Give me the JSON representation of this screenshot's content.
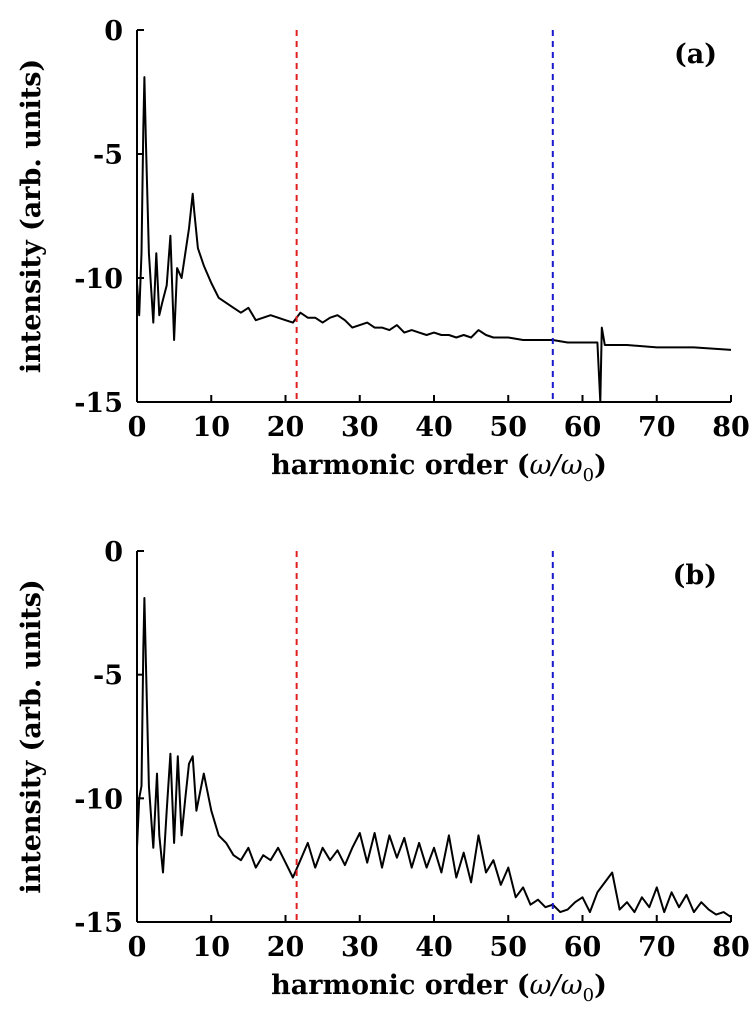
{
  "chart_data": [
    {
      "type": "line",
      "panel_label": "(a)",
      "xlabel_text": "harmonic order (",
      "xlabel_math": "ω/ω",
      "xlabel_sub": "0",
      "xlabel_close": ")",
      "ylabel": "intensity (arb. units)",
      "xlim": [
        0,
        80
      ],
      "ylim": [
        -15,
        0
      ],
      "xticks": [
        "0",
        "10",
        "20",
        "30",
        "40",
        "50",
        "60",
        "70",
        "80"
      ],
      "yticks": [
        "0",
        "-5",
        "-10",
        "-15"
      ],
      "grid": false,
      "reference_lines": [
        {
          "x": 21.5,
          "color": "#e02020",
          "style": "dashed"
        },
        {
          "x": 56,
          "color": "#1a1acc",
          "style": "dashed"
        }
      ],
      "series": [
        {
          "color": "#000000",
          "x": [
            0,
            0.3,
            0.6,
            0.85,
            1.0,
            1.2,
            1.6,
            2.2,
            2.6,
            3.0,
            3.4,
            4.0,
            4.5,
            5.0,
            5.4,
            6.0,
            6.5,
            7.0,
            7.5,
            7.7,
            8.2,
            9.0,
            10.0,
            11.0,
            12.0,
            13.0,
            14.0,
            15.0,
            16.0,
            17.0,
            18.0,
            19.0,
            20.0,
            21.0,
            22.0,
            23.0,
            24.0,
            25.0,
            26.0,
            27.0,
            28.0,
            29.0,
            30.0,
            31.0,
            32.0,
            33.0,
            34.0,
            35.0,
            36.0,
            37.0,
            38.0,
            39.0,
            40.0,
            41.0,
            42.0,
            43.0,
            44.0,
            45.0,
            46.0,
            47.0,
            48.0,
            50.0,
            52.0,
            54.0,
            56.0,
            58.0,
            60.0,
            62.0,
            62.4,
            62.6,
            63.0,
            66.0,
            70.0,
            75.0,
            80.0
          ],
          "y": [
            -10.2,
            -11.5,
            -9.0,
            -4.0,
            -1.9,
            -4.5,
            -9.0,
            -11.8,
            -9.0,
            -11.5,
            -11.0,
            -10.3,
            -8.3,
            -12.5,
            -9.6,
            -10.0,
            -9.0,
            -8.0,
            -6.6,
            -7.3,
            -8.8,
            -9.5,
            -10.2,
            -10.8,
            -11.0,
            -11.2,
            -11.4,
            -11.2,
            -11.7,
            -11.6,
            -11.5,
            -11.6,
            -11.7,
            -11.8,
            -11.4,
            -11.6,
            -11.6,
            -11.8,
            -11.6,
            -11.5,
            -11.7,
            -12.0,
            -11.9,
            -11.8,
            -12.0,
            -12.0,
            -12.1,
            -11.9,
            -12.2,
            -12.1,
            -12.2,
            -12.3,
            -12.2,
            -12.3,
            -12.3,
            -12.4,
            -12.3,
            -12.4,
            -12.1,
            -12.3,
            -12.4,
            -12.4,
            -12.5,
            -12.5,
            -12.5,
            -12.6,
            -12.6,
            -12.6,
            -15.0,
            -12.0,
            -12.7,
            -12.7,
            -12.8,
            -12.8,
            -12.9
          ]
        }
      ]
    },
    {
      "type": "line",
      "panel_label": "(b)",
      "xlabel_text": "harmonic order (",
      "xlabel_math": "ω/ω",
      "xlabel_sub": "0",
      "xlabel_close": ")",
      "ylabel": "intensity (arb. units)",
      "xlim": [
        0,
        80
      ],
      "ylim": [
        -15,
        0
      ],
      "xticks": [
        "0",
        "10",
        "20",
        "30",
        "40",
        "50",
        "60",
        "70",
        "80"
      ],
      "yticks": [
        "0",
        "-5",
        "-10",
        "-15"
      ],
      "grid": false,
      "reference_lines": [
        {
          "x": 21.5,
          "color": "#e02020",
          "style": "dashed"
        },
        {
          "x": 56,
          "color": "#1a1acc",
          "style": "dashed"
        }
      ],
      "series": [
        {
          "color": "#000000",
          "x": [
            0,
            0.3,
            0.6,
            0.85,
            1.0,
            1.2,
            1.6,
            2.2,
            2.7,
            3.0,
            3.5,
            4.0,
            4.5,
            5.0,
            5.5,
            6.0,
            6.5,
            7.0,
            7.5,
            8.0,
            9.0,
            10.0,
            11.0,
            12.0,
            13.0,
            14.0,
            15.0,
            16.0,
            17.0,
            18.0,
            19.0,
            20.0,
            21.0,
            22.0,
            23.0,
            24.0,
            25.0,
            26.0,
            27.0,
            28.0,
            29.0,
            30.0,
            31.0,
            32.0,
            33.0,
            34.0,
            35.0,
            36.0,
            37.0,
            38.0,
            39.0,
            40.0,
            41.0,
            42.0,
            43.0,
            44.0,
            45.0,
            46.0,
            47.0,
            48.0,
            49.0,
            50.0,
            51.0,
            52.0,
            53.0,
            54.0,
            55.0,
            56.0,
            57.0,
            58.0,
            59.0,
            60.0,
            61.0,
            62.0,
            63.0,
            64.0,
            65.0,
            66.0,
            67.0,
            68.0,
            69.0,
            70.0,
            71.0,
            72.0,
            73.0,
            74.0,
            75.0,
            76.0,
            77.0,
            78.0,
            79.0,
            80.0
          ],
          "y": [
            -12.0,
            -10.0,
            -9.5,
            -4.0,
            -1.9,
            -4.5,
            -9.5,
            -12.0,
            -9.0,
            -11.5,
            -13.0,
            -10.5,
            -8.2,
            -11.8,
            -8.3,
            -11.5,
            -10.0,
            -8.6,
            -8.3,
            -10.5,
            -9.0,
            -10.5,
            -11.5,
            -11.8,
            -12.3,
            -12.5,
            -12.0,
            -12.8,
            -12.3,
            -12.5,
            -12.0,
            -12.6,
            -13.2,
            -12.5,
            -11.8,
            -12.8,
            -12.0,
            -12.5,
            -12.1,
            -12.7,
            -12.0,
            -11.4,
            -12.6,
            -11.4,
            -12.8,
            -11.5,
            -12.4,
            -11.6,
            -12.8,
            -11.8,
            -12.8,
            -12.0,
            -13.0,
            -11.5,
            -13.2,
            -12.2,
            -13.4,
            -11.5,
            -13.0,
            -12.5,
            -13.5,
            -12.8,
            -14.0,
            -13.6,
            -14.3,
            -14.1,
            -14.4,
            -14.3,
            -14.6,
            -14.5,
            -14.2,
            -14.0,
            -14.6,
            -13.8,
            -13.4,
            -13.0,
            -14.5,
            -14.2,
            -14.6,
            -14.0,
            -14.4,
            -13.6,
            -14.6,
            -13.8,
            -14.4,
            -13.9,
            -14.6,
            -14.2,
            -14.5,
            -14.7,
            -14.6,
            -14.8
          ]
        }
      ]
    }
  ]
}
